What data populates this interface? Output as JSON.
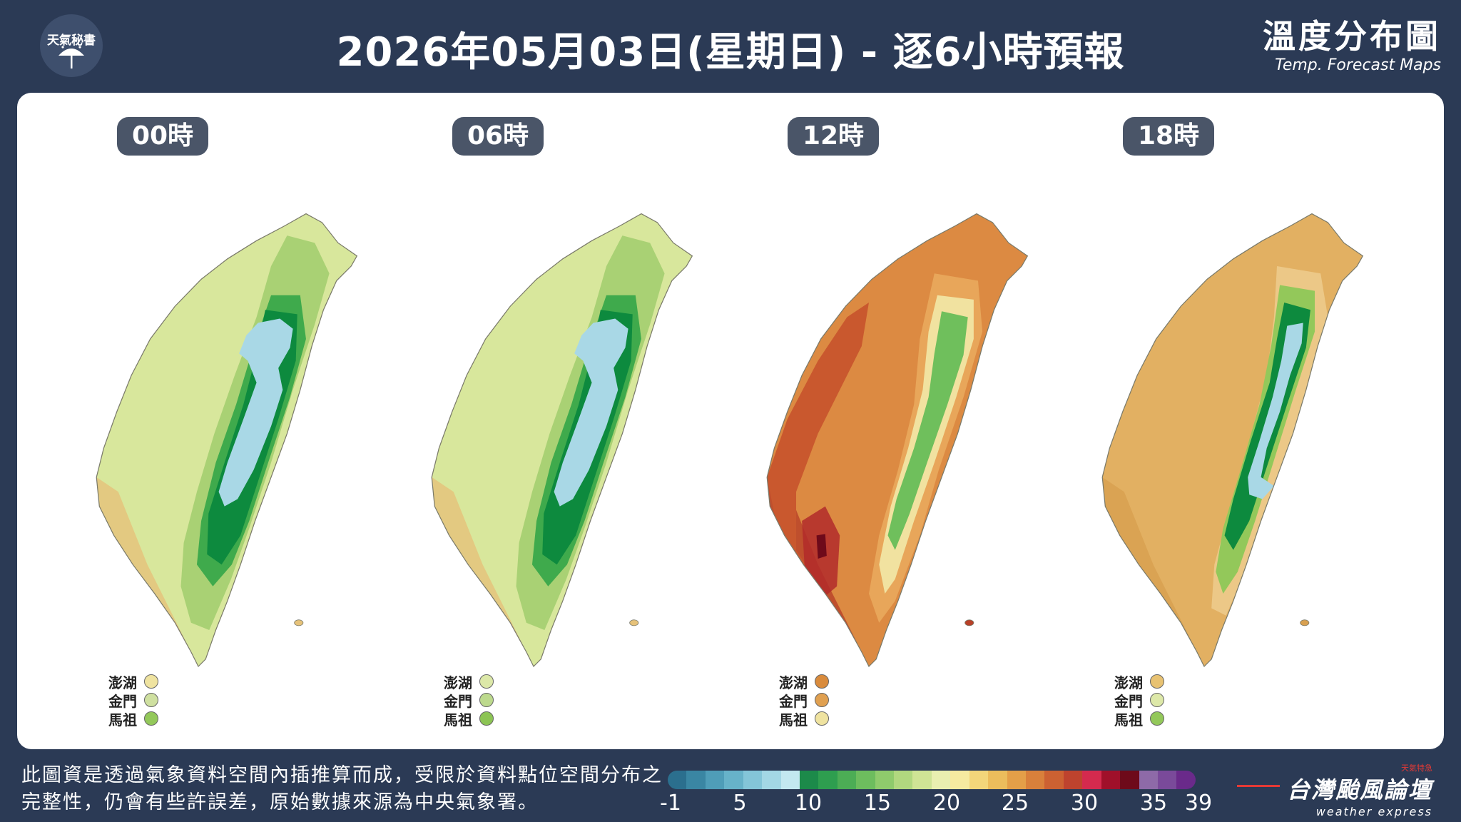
{
  "logo": {
    "label": "天氣秘書",
    "icon": "umbrella-icon"
  },
  "header": {
    "title": "2026年05月03日(星期日) - 逐6小時預報",
    "brand_zh": "溫度分布圖",
    "brand_en": "Temp. Forecast Maps"
  },
  "maps": [
    {
      "time": "00時",
      "scheme": "cool",
      "islands": [
        {
          "name": "澎湖",
          "color": "#efe3a0"
        },
        {
          "name": "金門",
          "color": "#cfe0a0"
        },
        {
          "name": "馬祖",
          "color": "#93c85a"
        }
      ]
    },
    {
      "time": "06時",
      "scheme": "cool",
      "islands": [
        {
          "name": "澎湖",
          "color": "#dce8a8"
        },
        {
          "name": "金門",
          "color": "#bcd98c"
        },
        {
          "name": "馬祖",
          "color": "#8cc454"
        }
      ]
    },
    {
      "time": "12時",
      "scheme": "hot",
      "islands": [
        {
          "name": "澎湖",
          "color": "#d98b3c"
        },
        {
          "name": "金門",
          "color": "#e0a050"
        },
        {
          "name": "馬祖",
          "color": "#efe3a0"
        }
      ]
    },
    {
      "time": "18時",
      "scheme": "warm",
      "islands": [
        {
          "name": "澎湖",
          "color": "#e8c272"
        },
        {
          "name": "金門",
          "color": "#dde8a8"
        },
        {
          "name": "馬祖",
          "color": "#93c85a"
        }
      ]
    }
  ],
  "note": "此圖資是透過氣象資料空間內插推算而成，受限於資料點位空間分布之完整性，仍會有些許誤差，原始數據來源為中央氣象署。",
  "scale": {
    "ticks": [
      "-1",
      "5",
      "10",
      "15",
      "20",
      "25",
      "30",
      "35",
      "39"
    ],
    "colors": [
      "#2b6f8e",
      "#3a86a3",
      "#4f9db8",
      "#67b2c9",
      "#84c5d8",
      "#a3d7e5",
      "#c3e8f0",
      "#1c8a4a",
      "#2e9e4f",
      "#4cad55",
      "#6dbd5e",
      "#8fcb6c",
      "#b1d87f",
      "#cfe495",
      "#e9efb0",
      "#f6eaa0",
      "#f3d67a",
      "#ecbd5c",
      "#e49f48",
      "#d9803b",
      "#cc6132",
      "#be432e",
      "#d42a4e",
      "#a0102a",
      "#6e0a1a",
      "#8e6aa8",
      "#7a4a9a",
      "#6a2a8a"
    ]
  },
  "footer": {
    "zh": "台灣颱風論壇",
    "en": "weather express",
    "tag": "天氣特急"
  }
}
